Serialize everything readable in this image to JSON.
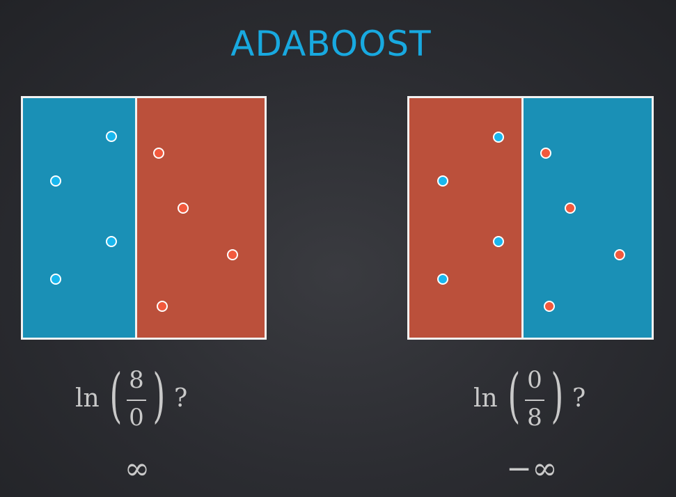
{
  "title": "ADABOOST",
  "colors": {
    "blue_region": "#1a90b6",
    "red_region": "#bb503b",
    "blue_point": "#19b7ee",
    "red_point": "#f2593d",
    "title": "#18a9e0"
  },
  "left_panel": {
    "regions": [
      "blue",
      "red"
    ],
    "formula": {
      "func": "ln",
      "numerator": "8",
      "denominator": "0",
      "suffix": "?"
    },
    "result": "∞"
  },
  "right_panel": {
    "regions": [
      "red",
      "blue"
    ],
    "formula": {
      "func": "ln",
      "numerator": "0",
      "denominator": "8",
      "suffix": "?"
    },
    "result": "−∞"
  }
}
